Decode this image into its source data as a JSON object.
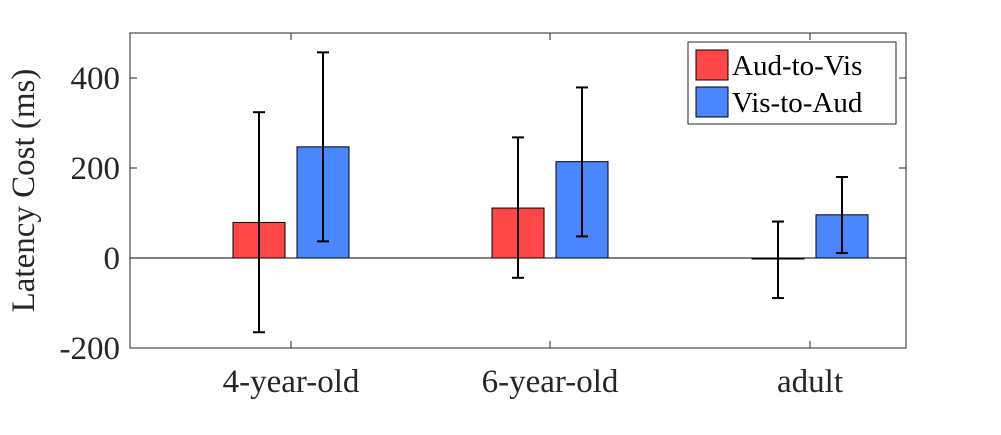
{
  "chart_data": {
    "type": "bar",
    "categories": [
      "4-year-old",
      "6-year-old",
      "adult"
    ],
    "series": [
      {
        "name": "Aud-to-Vis",
        "color": "#ff4747",
        "values": [
          79,
          111,
          -2
        ],
        "error_low": [
          -165,
          -44,
          -89
        ],
        "error_high": [
          324,
          268,
          81
        ]
      },
      {
        "name": "Vis-to-Aud",
        "color": "#4a86ff",
        "values": [
          247,
          214,
          96
        ],
        "error_low": [
          37,
          48,
          11
        ],
        "error_high": [
          457,
          379,
          180
        ]
      }
    ],
    "title": "",
    "xlabel": "",
    "ylabel": "Latency Cost (ms)",
    "ylim": [
      -200,
      500
    ],
    "yticks": [
      -200,
      0,
      200,
      400
    ],
    "ytick_labels": [
      "-200",
      "0",
      "200",
      "400"
    ],
    "grid": false,
    "baseline": 0,
    "legend_position": "top-right"
  }
}
